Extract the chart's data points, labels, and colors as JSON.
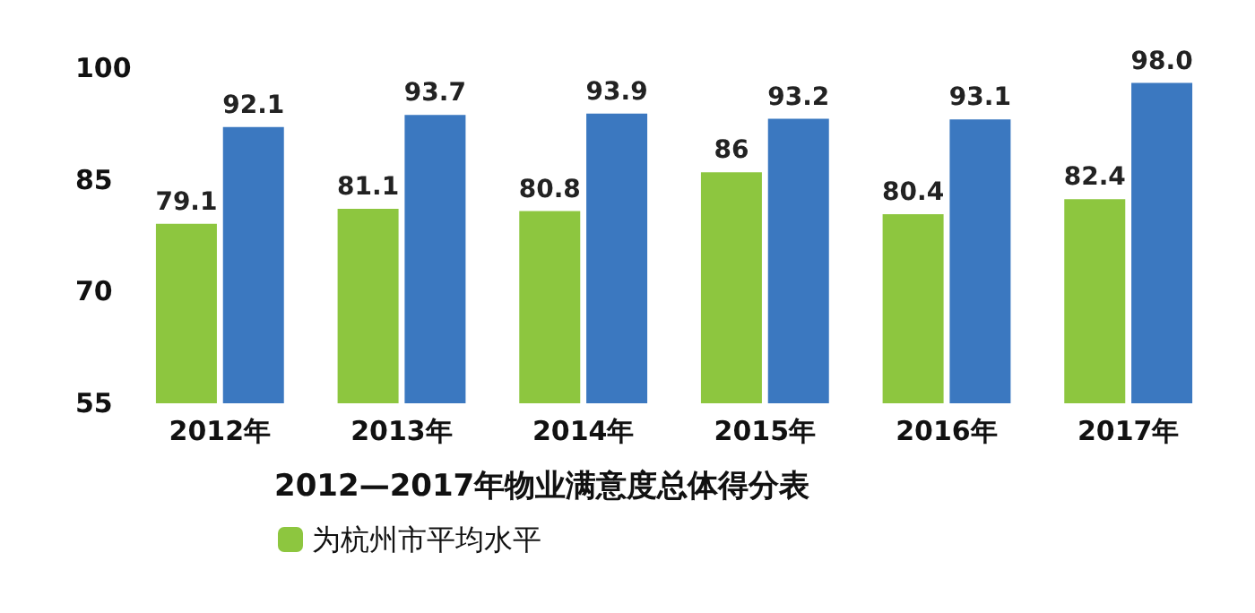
{
  "chart_data": {
    "type": "bar",
    "title": "2012—2017年物业满意度总体得分表",
    "categories": [
      "2012年",
      "2013年",
      "2014年",
      "2015年",
      "2016年",
      "2017年"
    ],
    "series": [
      {
        "name": "为杭州市平均水平",
        "color": "#8dc63f",
        "values": [
          79.1,
          81.1,
          80.8,
          86,
          80.4,
          82.4
        ],
        "value_labels": [
          "79.1",
          "81.1",
          "80.8",
          "86",
          "80.4",
          "82.4"
        ]
      },
      {
        "color": "#3b78c0",
        "values": [
          92.1,
          93.7,
          93.9,
          93.2,
          93.1,
          98.0
        ],
        "value_labels": [
          "92.1",
          "93.7",
          "93.9",
          "93.2",
          "93.1",
          "98.0"
        ]
      }
    ],
    "ylim": [
      55,
      100
    ],
    "yticks": [
      55,
      70,
      85,
      100
    ],
    "grid": false,
    "legend": "bottom"
  }
}
